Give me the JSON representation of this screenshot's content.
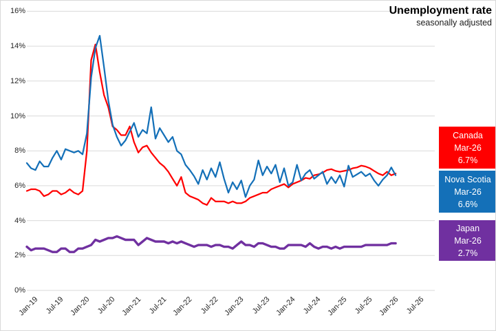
{
  "title": "Unemployment rate",
  "subtitle": "seasonally adjusted",
  "colors": {
    "canada": "#FF0000",
    "nova_scotia": "#1470B8",
    "japan": "#7030A0",
    "gridline": "#D9D9D9",
    "axis_text": "#262626"
  },
  "legend": [
    {
      "name": "Canada",
      "date": "Mar-26",
      "value": "6.7%",
      "color": "#FF0000"
    },
    {
      "name": "Nova Scotia",
      "date": "Mar-26",
      "value": "6.6%",
      "color": "#1470B8"
    },
    {
      "name": "Japan",
      "date": "Mar-26",
      "value": "2.7%",
      "color": "#7030A0"
    }
  ],
  "chart_data": {
    "type": "line",
    "x_start": "Jan-19",
    "x_end": "Mar-26",
    "frequency": "monthly",
    "x_tick_labels": [
      "Jan-19",
      "Jul-19",
      "Jan-20",
      "Jul-20",
      "Jan-21",
      "Jul-21",
      "Jan-22",
      "Jul-22",
      "Jan-23",
      "Jul-23",
      "Jan-24",
      "Jul-24",
      "Jan-25",
      "Jul-25",
      "Jan-26",
      "Jul-26"
    ],
    "y_tick_labels": [
      "0%",
      "2%",
      "4%",
      "6%",
      "8%",
      "10%",
      "12%",
      "14%",
      "16%"
    ],
    "ylim": [
      0,
      16
    ],
    "grid": "horizontal",
    "legend_position": "right",
    "series": [
      {
        "name": "Canada",
        "color": "#FF0000",
        "values": [
          5.7,
          5.8,
          5.8,
          5.7,
          5.4,
          5.5,
          5.7,
          5.7,
          5.5,
          5.6,
          5.8,
          5.6,
          5.5,
          5.7,
          8.0,
          13.2,
          14.1,
          12.5,
          11.2,
          10.5,
          9.4,
          9.2,
          8.9,
          8.9,
          9.4,
          8.5,
          7.9,
          8.2,
          8.3,
          7.9,
          7.6,
          7.3,
          7.1,
          6.8,
          6.4,
          6.0,
          6.5,
          5.6,
          5.4,
          5.3,
          5.2,
          5.0,
          4.9,
          5.3,
          5.1,
          5.1,
          5.1,
          5.0,
          5.1,
          5.0,
          5.0,
          5.1,
          5.3,
          5.4,
          5.5,
          5.6,
          5.6,
          5.8,
          5.9,
          6.0,
          6.1,
          5.9,
          6.1,
          6.2,
          6.3,
          6.45,
          6.4,
          6.6,
          6.65,
          6.75,
          6.9,
          6.95,
          6.85,
          6.8,
          6.85,
          6.9,
          7.0,
          7.05,
          7.15,
          7.1,
          7.0,
          6.85,
          6.7,
          6.6,
          6.8,
          6.6,
          6.7
        ]
      },
      {
        "name": "Nova Scotia",
        "color": "#1470B8",
        "values": [
          7.3,
          7.0,
          6.9,
          7.4,
          7.1,
          7.1,
          7.6,
          8.0,
          7.5,
          8.1,
          8.0,
          7.9,
          8.0,
          7.8,
          9.0,
          12.2,
          13.9,
          14.6,
          12.8,
          10.9,
          9.5,
          8.8,
          8.3,
          8.6,
          9.1,
          9.6,
          8.8,
          9.2,
          9.0,
          10.5,
          8.7,
          9.3,
          8.9,
          8.5,
          8.8,
          8.0,
          7.8,
          7.2,
          6.9,
          6.55,
          6.1,
          6.9,
          6.35,
          7.0,
          6.5,
          7.35,
          6.4,
          5.6,
          6.2,
          5.8,
          6.3,
          5.35,
          6.0,
          6.35,
          7.45,
          6.6,
          7.1,
          6.7,
          7.2,
          6.2,
          7.0,
          6.0,
          6.2,
          7.2,
          6.3,
          6.7,
          6.9,
          6.4,
          6.6,
          6.8,
          6.1,
          6.5,
          6.15,
          6.6,
          5.95,
          7.15,
          6.5,
          6.65,
          6.8,
          6.55,
          6.7,
          6.3,
          6.0,
          6.35,
          6.6,
          7.05,
          6.6
        ]
      },
      {
        "name": "Japan",
        "color": "#7030A0",
        "values": [
          2.5,
          2.3,
          2.4,
          2.4,
          2.4,
          2.3,
          2.2,
          2.2,
          2.4,
          2.4,
          2.2,
          2.2,
          2.4,
          2.4,
          2.5,
          2.6,
          2.9,
          2.8,
          2.9,
          3.0,
          3.0,
          3.1,
          3.0,
          2.9,
          2.9,
          2.9,
          2.6,
          2.8,
          3.0,
          2.9,
          2.8,
          2.8,
          2.8,
          2.7,
          2.8,
          2.7,
          2.8,
          2.7,
          2.6,
          2.5,
          2.6,
          2.6,
          2.6,
          2.5,
          2.6,
          2.6,
          2.5,
          2.5,
          2.4,
          2.6,
          2.8,
          2.6,
          2.6,
          2.5,
          2.7,
          2.7,
          2.6,
          2.5,
          2.5,
          2.4,
          2.4,
          2.6,
          2.6,
          2.6,
          2.6,
          2.5,
          2.7,
          2.5,
          2.4,
          2.5,
          2.5,
          2.4,
          2.5,
          2.4,
          2.5,
          2.5,
          2.5,
          2.5,
          2.5,
          2.6,
          2.6,
          2.6,
          2.6,
          2.6,
          2.6,
          2.7,
          2.7
        ]
      }
    ]
  }
}
